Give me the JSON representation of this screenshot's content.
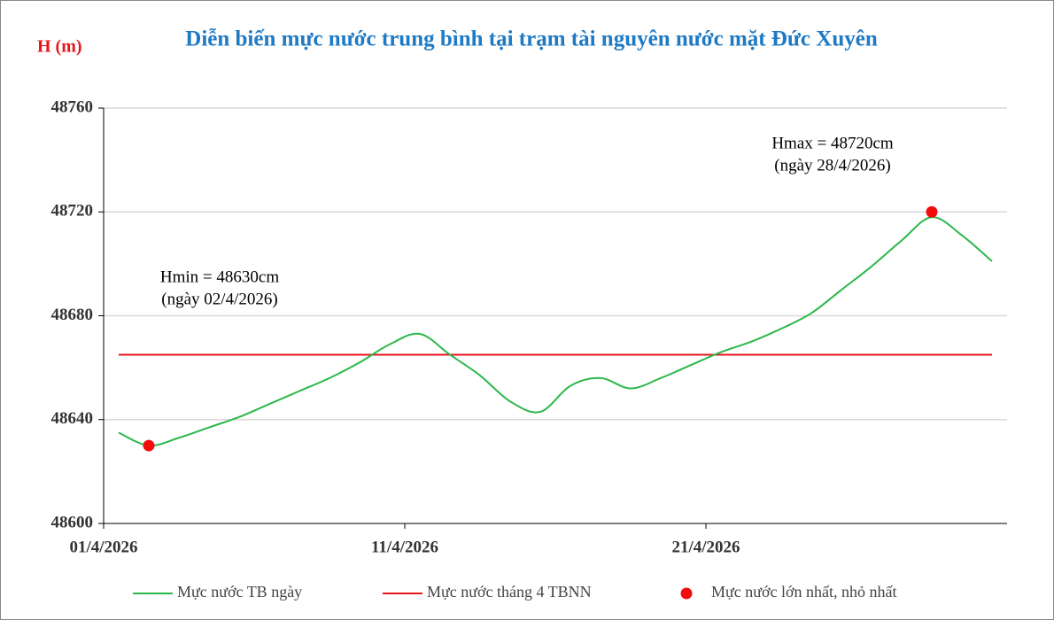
{
  "chart_data": {
    "type": "line",
    "title": "Diễn biến mực nước trung bình tại trạm tài nguyên nước mặt Đức Xuyên",
    "y_label": "H (m)",
    "categories": [
      "01/4/2026",
      null,
      null,
      null,
      null,
      null,
      null,
      null,
      null,
      null,
      "11/4/2026",
      null,
      null,
      null,
      null,
      null,
      null,
      null,
      null,
      null,
      "21/4/2026",
      null,
      null,
      null,
      null,
      null,
      null,
      null,
      null,
      null
    ],
    "series": [
      {
        "name": "Mực nước TB ngày",
        "type": "line",
        "color": "#2bb84a",
        "values": [
          48635,
          48630,
          48633,
          48637,
          48641,
          48646,
          48651,
          48656,
          48662,
          48669,
          48673,
          48665,
          48657,
          48647,
          48643,
          48653,
          48656,
          48652,
          48656,
          48661,
          48666,
          48670,
          48675,
          48681,
          48690,
          48699,
          48709,
          48718,
          48711,
          48701
        ]
      },
      {
        "name": "Mực nước tháng 4 TBNN",
        "type": "hline",
        "color": "#e8141b",
        "value": 48665
      },
      {
        "name": "Mực nước lớn nhất, nhỏ nhất",
        "type": "points",
        "color": "#f20d0d",
        "values": [
          null,
          48630,
          null,
          null,
          null,
          null,
          null,
          null,
          null,
          null,
          null,
          null,
          null,
          null,
          null,
          null,
          null,
          null,
          null,
          null,
          null,
          null,
          null,
          null,
          null,
          null,
          null,
          48720,
          null,
          null
        ]
      }
    ],
    "annotations": [
      {
        "lines": [
          "Hmin = 48630cm",
          "(ngày 02/4/2026)"
        ]
      },
      {
        "lines": [
          "Hmax = 48720cm",
          "(ngày 28/4/2026)"
        ]
      }
    ],
    "ylim": [
      48600,
      48760
    ],
    "yticks": [
      48600,
      48640,
      48680,
      48720,
      48760
    ],
    "grid": true
  }
}
